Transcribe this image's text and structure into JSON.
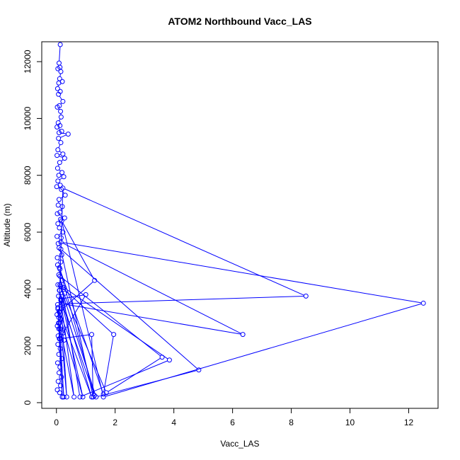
{
  "chart_data": {
    "type": "line",
    "title": "ATOM2 Northbound Vacc_LAS",
    "xlabel": "Vacc_LAS",
    "ylabel": "Altitude (m)",
    "xlim": [
      -0.5,
      13.0
    ],
    "ylim": [
      -200,
      12700
    ],
    "x_ticks": [
      0,
      2,
      4,
      6,
      8,
      10,
      12
    ],
    "x_tick_labels": [
      "0",
      "2",
      "4",
      "6",
      "8",
      "10",
      "12"
    ],
    "y_ticks": [
      0,
      2000,
      4000,
      6000,
      8000,
      10000,
      12000
    ],
    "y_tick_labels": [
      "0",
      "2000",
      "4000",
      "6000",
      "8000",
      "10000",
      "12000"
    ],
    "grid": false,
    "legend": "none",
    "color": "#0000ff",
    "series": [
      {
        "points": [
          [
            0.13,
            12600
          ],
          [
            0.09,
            11950
          ],
          [
            0.12,
            11800
          ],
          [
            0.05,
            11750
          ],
          [
            0.15,
            11650
          ],
          [
            0.11,
            11400
          ],
          [
            0.2,
            11300
          ],
          [
            0.08,
            11250
          ],
          [
            0.04,
            11050
          ],
          [
            0.13,
            10950
          ],
          [
            0.07,
            10850
          ],
          [
            0.22,
            10600
          ],
          [
            0.1,
            10450
          ],
          [
            0.03,
            10400
          ],
          [
            0.14,
            10250
          ],
          [
            0.16,
            10050
          ],
          [
            0.06,
            9850
          ],
          [
            0.12,
            9750
          ],
          [
            0.02,
            9700
          ],
          [
            0.18,
            9550
          ],
          [
            0.09,
            9500
          ],
          [
            0.4,
            9450
          ],
          [
            0.07,
            9300
          ],
          [
            0.15,
            9150
          ],
          [
            0.05,
            8900
          ],
          [
            0.22,
            8750
          ],
          [
            0.02,
            8700
          ],
          [
            0.28,
            8600
          ],
          [
            0.11,
            8450
          ],
          [
            0.04,
            8250
          ],
          [
            0.19,
            8100
          ],
          [
            0.08,
            8000
          ],
          [
            0.25,
            7950
          ],
          [
            0.05,
            7800
          ],
          [
            0.13,
            7650
          ],
          [
            0.01,
            7600
          ],
          [
            0.17,
            7500
          ],
          [
            0.3,
            7300
          ],
          [
            0.09,
            7150
          ],
          [
            0.06,
            6950
          ],
          [
            0.2,
            6900
          ],
          [
            0.12,
            6700
          ],
          [
            0.03,
            6650
          ],
          [
            0.28,
            6500
          ],
          [
            0.14,
            6450
          ],
          [
            0.05,
            6300
          ],
          [
            0.1,
            6150
          ],
          [
            0.22,
            6000
          ],
          [
            0.02,
            5850
          ],
          [
            0.16,
            5800
          ],
          [
            0.06,
            5600
          ],
          [
            0.09,
            5450
          ],
          [
            0.18,
            5200
          ],
          [
            0.03,
            5100
          ],
          [
            0.15,
            4950
          ],
          [
            0.04,
            4850
          ],
          [
            0.12,
            4700
          ],
          [
            0.08,
            4500
          ],
          [
            0.2,
            4300
          ],
          [
            0.05,
            4150
          ],
          [
            0.25,
            4050
          ],
          [
            0.11,
            3950
          ],
          [
            0.28,
            3850
          ],
          [
            0.07,
            3750
          ],
          [
            0.18,
            3600
          ],
          [
            0.04,
            3450
          ],
          [
            0.16,
            3300
          ],
          [
            0.09,
            3200
          ],
          [
            0.02,
            3100
          ],
          [
            0.14,
            2950
          ],
          [
            0.07,
            2800
          ],
          [
            0.03,
            2700
          ],
          [
            0.12,
            2600
          ],
          [
            0.22,
            2450
          ],
          [
            0.06,
            2350
          ],
          [
            0.1,
            2250
          ],
          [
            0.26,
            2200
          ],
          [
            0.05,
            2050
          ],
          [
            0.13,
            1900
          ],
          [
            0.08,
            1700
          ],
          [
            0.19,
            1550
          ],
          [
            0.04,
            1400
          ],
          [
            0.12,
            1250
          ],
          [
            0.09,
            1050
          ],
          [
            0.17,
            900
          ],
          [
            0.06,
            750
          ],
          [
            0.14,
            600
          ],
          [
            0.03,
            450
          ],
          [
            0.11,
            350
          ],
          [
            0.2,
            200
          ],
          [
            0.08,
            3000
          ],
          [
            0.22,
            7550
          ],
          [
            8.5,
            3750
          ],
          [
            0.2,
            3480
          ],
          [
            6.35,
            2400
          ],
          [
            0.15,
            5650
          ],
          [
            12.5,
            3500
          ],
          [
            1.6,
            200
          ],
          [
            0.18,
            6400
          ],
          [
            1.3,
            4300
          ],
          [
            0.1,
            3200
          ],
          [
            0.35,
            200
          ],
          [
            0.15,
            3650
          ],
          [
            1.0,
            3800
          ],
          [
            0.12,
            2250
          ],
          [
            1.2,
            2400
          ],
          [
            1.25,
            200
          ],
          [
            0.15,
            5400
          ],
          [
            4.85,
            1150
          ],
          [
            1.35,
            200
          ],
          [
            0.12,
            4150
          ],
          [
            3.85,
            1500
          ],
          [
            0.8,
            200
          ],
          [
            0.12,
            4450
          ],
          [
            3.6,
            1600
          ],
          [
            1.7,
            350
          ],
          [
            0.14,
            4100
          ],
          [
            1.95,
            2400
          ],
          [
            1.6,
            300
          ],
          [
            0.1,
            4750
          ],
          [
            1.3,
            250
          ],
          [
            0.15,
            3600
          ],
          [
            0.6,
            200
          ],
          [
            0.1,
            2800
          ],
          [
            0.25,
            200
          ],
          [
            0.05,
            3350
          ],
          [
            1.2,
            200
          ],
          [
            0.1,
            3950
          ],
          [
            0.9,
            200
          ],
          [
            0.05,
            3300
          ],
          [
            0.2,
            200
          ],
          [
            0.08,
            2600
          ]
        ]
      }
    ]
  }
}
